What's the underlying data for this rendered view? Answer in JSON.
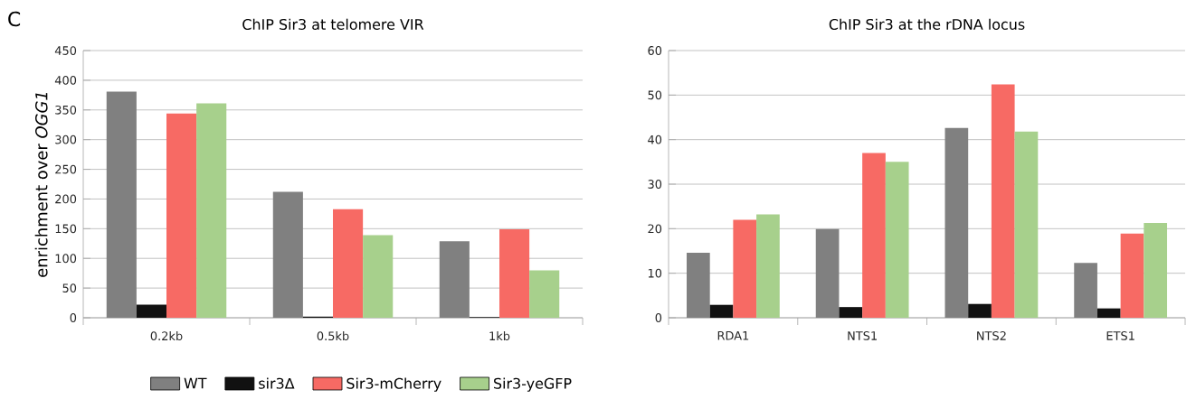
{
  "chart_data": [
    {
      "type": "bar",
      "title": "ChIP Sir3 at telomere VIR",
      "ylabel": "enrichment over *OGG1*",
      "annotations": [
        "C"
      ],
      "categories": [
        "0.2kb",
        "0.5kb",
        "1kb"
      ],
      "series": [
        {
          "name": "WT",
          "color": "#808080",
          "values": [
            381,
            212,
            129
          ]
        },
        {
          "name": "sir3Δ",
          "color": "#111111",
          "values": [
            22,
            2,
            1
          ]
        },
        {
          "name": "Sir3-mCherry",
          "color": "#f76a64",
          "values": [
            344,
            183,
            149
          ]
        },
        {
          "name": "Sir3-yeGFP",
          "color": "#a7d08c",
          "values": [
            361,
            139,
            80
          ]
        }
      ],
      "ylim": [
        0,
        450
      ],
      "yticks": [
        0,
        50,
        100,
        150,
        200,
        250,
        300,
        350,
        400,
        450
      ],
      "grid": "y",
      "legend": "bottom"
    },
    {
      "type": "bar",
      "title": "ChIP Sir3 at the rDNA locus",
      "categories": [
        "RDA1",
        "NTS1",
        "NTS2",
        "ETS1"
      ],
      "series": [
        {
          "color": "#808080",
          "values": [
            14.6,
            19.9,
            42.6,
            12.3
          ]
        },
        {
          "color": "#111111",
          "values": [
            2.9,
            2.4,
            3.1,
            2.1
          ]
        },
        {
          "color": "#f76a64",
          "values": [
            22,
            37,
            52.4,
            18.9
          ]
        },
        {
          "color": "#a7d08c",
          "values": [
            23.2,
            35,
            41.8,
            21.3
          ]
        }
      ],
      "ylim": [
        0,
        60
      ],
      "yticks": [
        0,
        10,
        20,
        30,
        40,
        50,
        60
      ],
      "grid": "y"
    }
  ]
}
